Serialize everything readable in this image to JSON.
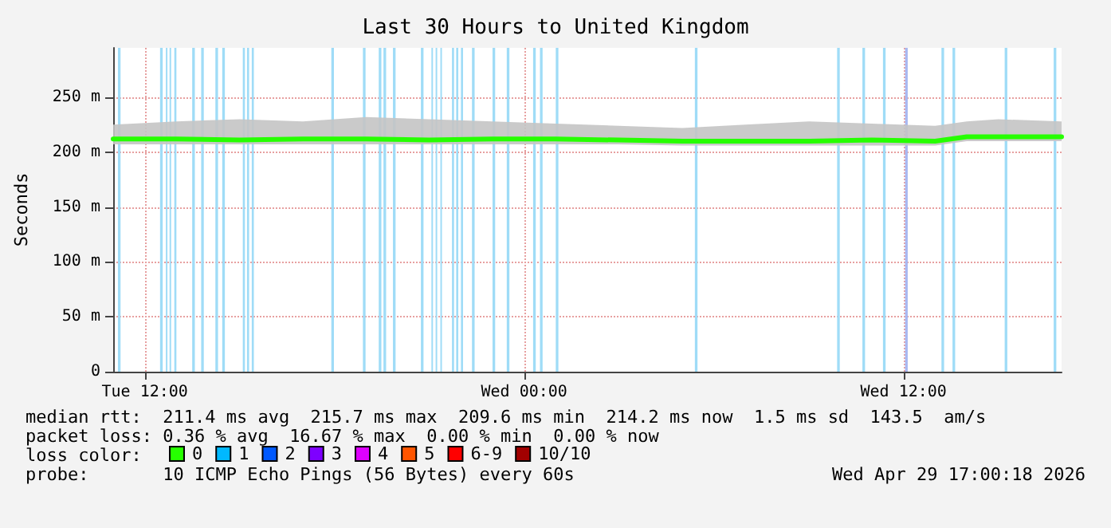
{
  "chart_data": {
    "type": "line",
    "title": "Last 30 Hours to United Kingdom",
    "ylabel": "Seconds",
    "xlim": [
      "2026-04-28T11:00",
      "2026-04-29T17:00"
    ],
    "xticks": [
      {
        "value": "2026-04-28T12:00",
        "label": "Tue 12:00"
      },
      {
        "value": "2026-04-29T00:00",
        "label": "Wed 00:00"
      },
      {
        "value": "2026-04-29T12:00",
        "label": "Wed 12:00"
      }
    ],
    "ylim": [
      0,
      295
    ],
    "yticks": [
      0,
      {
        "value": 50,
        "label": "50 m"
      },
      {
        "value": 100,
        "label": "100 m"
      },
      {
        "value": 150,
        "label": "150 m"
      },
      {
        "value": 200,
        "label": "200 m"
      },
      {
        "value": 250,
        "label": "250 m"
      }
    ],
    "x": [
      "2026-04-28T11:00",
      "2026-04-28T13:00",
      "2026-04-28T15:00",
      "2026-04-28T17:00",
      "2026-04-28T19:00",
      "2026-04-28T21:00",
      "2026-04-28T23:00",
      "2026-04-29T01:00",
      "2026-04-29T03:00",
      "2026-04-29T05:00",
      "2026-04-29T07:00",
      "2026-04-29T09:00",
      "2026-04-29T11:00",
      "2026-04-29T13:00",
      "2026-04-29T14:00",
      "2026-04-29T15:00",
      "2026-04-29T17:00"
    ],
    "series": [
      {
        "name": "0",
        "color": "#26ff00",
        "values": [
          212,
          212,
          211,
          212,
          212,
          211,
          212,
          212,
          211,
          210,
          210,
          210,
          211,
          210,
          214,
          214,
          214
        ],
        "lower": [
          207,
          207,
          207,
          207,
          207,
          207,
          207,
          207,
          207,
          206,
          206,
          206,
          206,
          206,
          210,
          210,
          210
        ],
        "upper": [
          225,
          228,
          230,
          228,
          232,
          230,
          228,
          226,
          224,
          222,
          225,
          228,
          226,
          224,
          228,
          230,
          228
        ]
      },
      {
        "name": "1",
        "color": "#00b8ff",
        "values": [
          null,
          null,
          null,
          null,
          null,
          null,
          null,
          null,
          null,
          null,
          null,
          null,
          null,
          null,
          null,
          null,
          null
        ]
      },
      {
        "name": "2",
        "color": "#0059ff",
        "values": [
          null,
          null,
          null,
          null,
          null,
          null,
          null,
          null,
          null,
          null,
          null,
          null,
          null,
          null,
          null,
          null,
          null
        ]
      },
      {
        "name": "3",
        "color": "#7e00ff",
        "values": [
          null,
          null,
          null,
          null,
          null,
          null,
          null,
          null,
          null,
          null,
          null,
          null,
          null,
          null,
          null,
          null,
          null
        ]
      },
      {
        "name": "4",
        "color": "#dd00ff",
        "values": [
          null,
          null,
          null,
          null,
          null,
          null,
          null,
          null,
          null,
          null,
          null,
          null,
          null,
          null,
          null,
          null,
          null
        ]
      },
      {
        "name": "5",
        "color": "#ff5500",
        "values": [
          null,
          null,
          null,
          null,
          null,
          null,
          null,
          null,
          null,
          null,
          null,
          null,
          null,
          null,
          null,
          null,
          null
        ]
      },
      {
        "name": "6-9",
        "color": "#ff0000",
        "values": [
          null,
          null,
          null,
          null,
          null,
          null,
          null,
          null,
          null,
          null,
          null,
          null,
          null,
          null,
          null,
          null,
          null
        ]
      },
      {
        "name": "10/10",
        "color": "#a10000",
        "values": [
          null,
          null,
          null,
          null,
          null,
          null,
          null,
          null,
          null,
          null,
          null,
          null,
          null,
          null,
          null,
          null,
          null
        ]
      }
    ],
    "legend_title": "loss color:",
    "legend": "bottom",
    "grid": true,
    "marker": "none",
    "line_style": "solid",
    "bands": [
      {
        "axis": "x",
        "from": "2026-04-28T11:09",
        "to": "2026-04-28T11:14",
        "color": "#9fdcf7"
      },
      {
        "axis": "x",
        "from": "2026-04-28T12:29",
        "to": "2026-04-28T12:34",
        "color": "#9fdcf7"
      },
      {
        "axis": "x",
        "from": "2026-04-28T12:40",
        "to": "2026-04-28T12:43",
        "color": "#9fdcf7"
      },
      {
        "axis": "x",
        "from": "2026-04-28T12:47",
        "to": "2026-04-28T12:50",
        "color": "#9fdcf7"
      },
      {
        "axis": "x",
        "from": "2026-04-28T12:56",
        "to": "2026-04-28T13:00",
        "color": "#9fdcf7"
      },
      {
        "axis": "x",
        "from": "2026-04-28T13:30",
        "to": "2026-04-28T13:35",
        "color": "#9fdcf7"
      },
      {
        "axis": "x",
        "from": "2026-04-28T13:47",
        "to": "2026-04-28T13:52",
        "color": "#9fdcf7"
      },
      {
        "axis": "x",
        "from": "2026-04-28T14:14",
        "to": "2026-04-28T14:19",
        "color": "#9fdcf7"
      },
      {
        "axis": "x",
        "from": "2026-04-28T14:27",
        "to": "2026-04-28T14:32",
        "color": "#9fdcf7"
      },
      {
        "axis": "x",
        "from": "2026-04-28T15:06",
        "to": "2026-04-28T15:10",
        "color": "#9fdcf7"
      },
      {
        "axis": "x",
        "from": "2026-04-28T15:14",
        "to": "2026-04-28T15:18",
        "color": "#9fdcf7"
      },
      {
        "axis": "x",
        "from": "2026-04-28T15:23",
        "to": "2026-04-28T15:27",
        "color": "#9fdcf7"
      },
      {
        "axis": "x",
        "from": "2026-04-28T17:54",
        "to": "2026-04-28T17:59",
        "color": "#9fdcf7"
      },
      {
        "axis": "x",
        "from": "2026-04-28T18:54",
        "to": "2026-04-28T18:59",
        "color": "#9fdcf7"
      },
      {
        "axis": "x",
        "from": "2026-04-28T19:24",
        "to": "2026-04-28T19:29",
        "color": "#9fdcf7"
      },
      {
        "axis": "x",
        "from": "2026-04-28T19:33",
        "to": "2026-04-28T19:38",
        "color": "#9fdcf7"
      },
      {
        "axis": "x",
        "from": "2026-04-28T19:51",
        "to": "2026-04-28T19:56",
        "color": "#9fdcf7"
      },
      {
        "axis": "x",
        "from": "2026-04-28T20:44",
        "to": "2026-04-28T20:49",
        "color": "#9fdcf7"
      },
      {
        "axis": "x",
        "from": "2026-04-28T21:04",
        "to": "2026-04-28T21:07",
        "color": "#9fdcf7"
      },
      {
        "axis": "x",
        "from": "2026-04-28T21:12",
        "to": "2026-04-28T21:15",
        "color": "#9fdcf7"
      },
      {
        "axis": "x",
        "from": "2026-04-28T21:21",
        "to": "2026-04-28T21:24",
        "color": "#9fdcf7"
      },
      {
        "axis": "x",
        "from": "2026-04-28T21:43",
        "to": "2026-04-28T21:47",
        "color": "#9fdcf7"
      },
      {
        "axis": "x",
        "from": "2026-04-28T21:51",
        "to": "2026-04-28T21:55",
        "color": "#9fdcf7"
      },
      {
        "axis": "x",
        "from": "2026-04-28T22:00",
        "to": "2026-04-28T22:04",
        "color": "#9fdcf7"
      },
      {
        "axis": "x",
        "from": "2026-04-28T22:21",
        "to": "2026-04-28T22:26",
        "color": "#9fdcf7"
      },
      {
        "axis": "x",
        "from": "2026-04-28T23:00",
        "to": "2026-04-28T23:05",
        "color": "#9fdcf7"
      },
      {
        "axis": "x",
        "from": "2026-04-28T23:27",
        "to": "2026-04-28T23:32",
        "color": "#9fdcf7"
      },
      {
        "axis": "x",
        "from": "2026-04-29T00:17",
        "to": "2026-04-29T00:22",
        "color": "#9fdcf7"
      },
      {
        "axis": "x",
        "from": "2026-04-29T00:30",
        "to": "2026-04-29T00:35",
        "color": "#9fdcf7"
      },
      {
        "axis": "x",
        "from": "2026-04-29T01:00",
        "to": "2026-04-29T01:05",
        "color": "#9fdcf7"
      },
      {
        "axis": "x",
        "from": "2026-04-29T05:24",
        "to": "2026-04-29T05:29",
        "color": "#9fdcf7"
      },
      {
        "axis": "x",
        "from": "2026-04-29T09:54",
        "to": "2026-04-29T09:59",
        "color": "#9fdcf7"
      },
      {
        "axis": "x",
        "from": "2026-04-29T10:42",
        "to": "2026-04-29T10:47",
        "color": "#9fdcf7"
      },
      {
        "axis": "x",
        "from": "2026-04-29T11:21",
        "to": "2026-04-29T11:26",
        "color": "#9fdcf7"
      },
      {
        "axis": "x",
        "from": "2026-04-29T12:03",
        "to": "2026-04-29T12:08",
        "color": "#a8b8f2"
      },
      {
        "axis": "x",
        "from": "2026-04-29T13:12",
        "to": "2026-04-29T13:17",
        "color": "#9fdcf7"
      },
      {
        "axis": "x",
        "from": "2026-04-29T13:33",
        "to": "2026-04-29T13:38",
        "color": "#9fdcf7"
      },
      {
        "axis": "x",
        "from": "2026-04-29T15:12",
        "to": "2026-04-29T15:17",
        "color": "#9fdcf7"
      },
      {
        "axis": "x",
        "from": "2026-04-29T16:45",
        "to": "2026-04-29T16:50",
        "color": "#9fdcf7"
      }
    ],
    "annotations": [
      "median rtt:  211.4 ms avg  215.7 ms max  209.6 ms min  214.2 ms now  1.5 ms sd  143.5  am/s",
      "packet loss: 0.36 % avg  16.67 % max  0.00 % min  0.00 % now",
      "probe:       10 ICMP Echo Pings (56 Bytes) every 60s",
      "Wed Apr 29 17:00:18 2026"
    ]
  }
}
